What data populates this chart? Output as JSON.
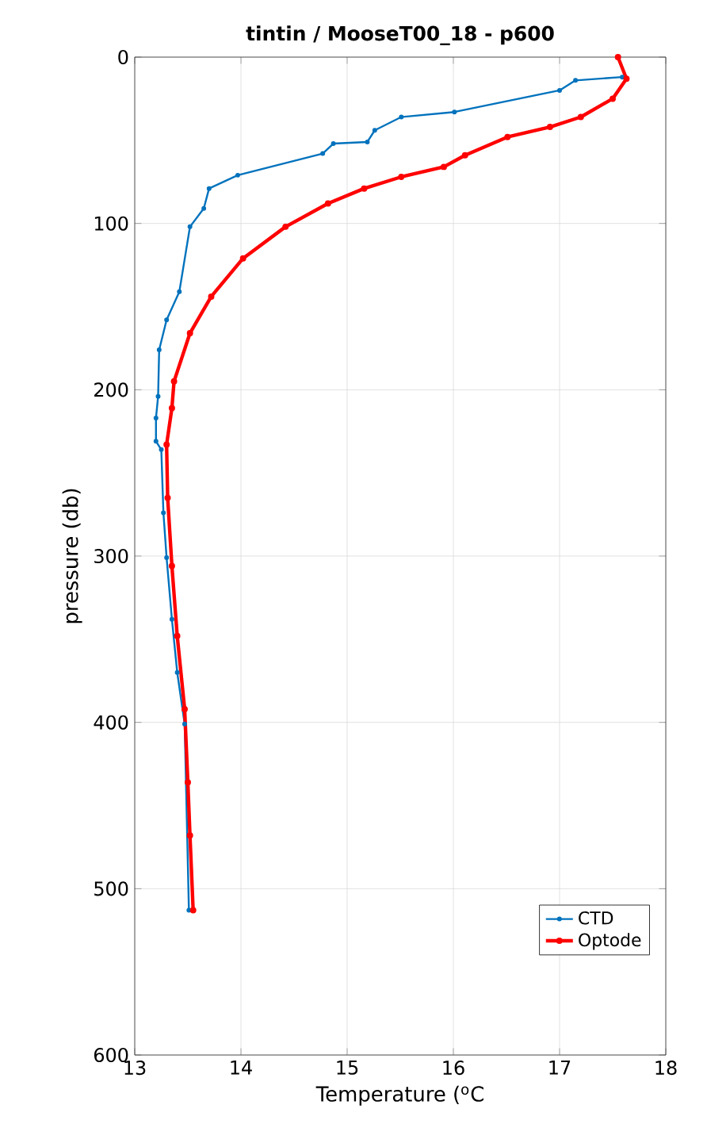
{
  "chart_data": {
    "type": "line",
    "title": "tintin / MooseT00_18 - p600",
    "xlabel": "Temperature ($^{o}$C",
    "ylabel": "pressure (db)",
    "xlim": [
      13,
      18
    ],
    "xticks": [
      13,
      14,
      15,
      16,
      17,
      18
    ],
    "ylim": [
      600,
      0
    ],
    "yticks": [
      0,
      100,
      200,
      300,
      400,
      500,
      600
    ],
    "grid": true,
    "legend": "bottom right",
    "marker": "circle",
    "line_style": "solid",
    "series": [
      {
        "name": "CTD",
        "color": "#0072bd",
        "x": [
          17.59,
          17.15,
          17.0,
          16.01,
          15.51,
          15.26,
          15.19,
          14.87,
          14.77,
          13.97,
          13.7,
          13.65,
          13.52,
          13.42,
          13.3,
          13.23,
          13.22,
          13.2,
          13.2,
          13.25,
          13.27,
          13.3,
          13.35,
          13.4,
          13.47,
          13.5,
          13.51
        ],
        "values": [
          12,
          14,
          20,
          33,
          36,
          44,
          51,
          52,
          58,
          71,
          79,
          91,
          102,
          141,
          158,
          176,
          204,
          217,
          231,
          236,
          274,
          301,
          338,
          370,
          401,
          null,
          513
        ]
      },
      {
        "name": "Optode",
        "color": "#ff0000",
        "x": [
          17.55,
          17.63,
          17.5,
          17.2,
          16.91,
          16.51,
          16.11,
          15.91,
          15.51,
          15.16,
          14.82,
          14.42,
          14.02,
          13.72,
          13.52,
          13.37,
          13.35,
          13.3,
          13.31,
          13.35,
          13.4,
          13.47,
          13.5,
          13.52,
          13.55
        ],
        "values": [
          0,
          13,
          25,
          36,
          42,
          48,
          59,
          66,
          72,
          79,
          88,
          102,
          121,
          144,
          166,
          195,
          211,
          233,
          265,
          306,
          348,
          392,
          436,
          468,
          513
        ]
      }
    ]
  }
}
